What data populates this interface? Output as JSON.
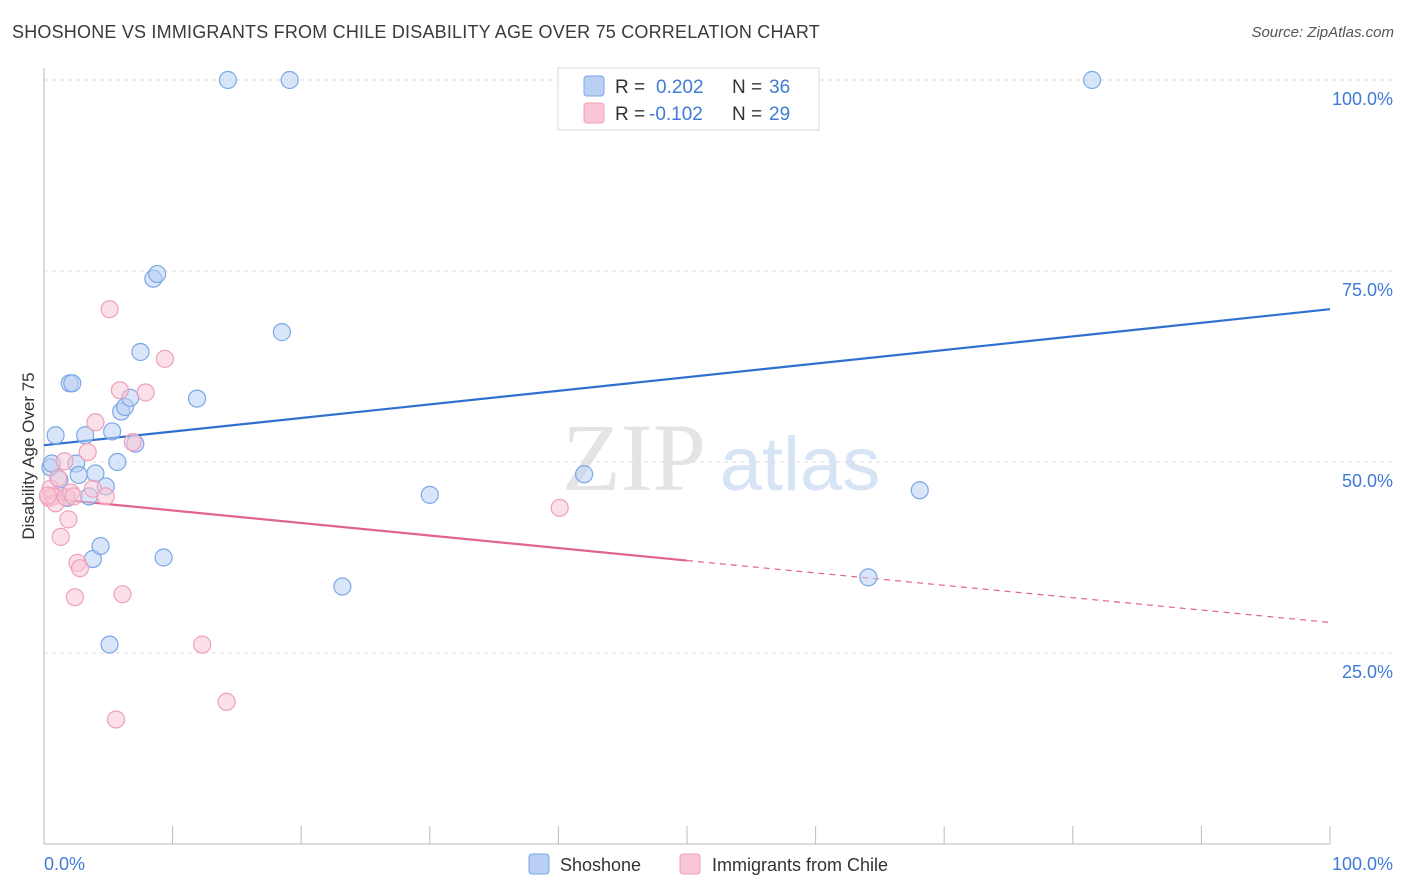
{
  "chart_data": {
    "type": "scatter",
    "title": "SHOSHONE VS IMMIGRANTS FROM CHILE DISABILITY AGE OVER 75 CORRELATION CHART",
    "source": "Source: ZipAtlas.com",
    "ylabel": "Disability Age Over 75",
    "xlabel": "",
    "xlim": [
      0,
      100
    ],
    "ylim": [
      0,
      100
    ],
    "x_tick_labels": {
      "left": "0.0%",
      "right": "100.0%"
    },
    "y_ticks": [
      {
        "value": 25,
        "label": "25.0%"
      },
      {
        "value": 50,
        "label": "50.0%"
      },
      {
        "value": 75,
        "label": "75.0%"
      },
      {
        "value": 100,
        "label": "100.0%"
      }
    ],
    "watermark": {
      "part1": "ZIP",
      "part2": "atlas"
    },
    "legend": {
      "rows": [
        {
          "r_label": "R =",
          "r_value": "0.202",
          "n_label": "N =",
          "n_value": "36"
        },
        {
          "r_label": "R =",
          "r_value": "-0.102",
          "n_label": "N =",
          "n_value": "29"
        }
      ]
    },
    "series": [
      {
        "name": "Shoshone",
        "color": "#7ba7e8",
        "fill": "#b9d0f3",
        "line_color": "#2f6fcf",
        "trend": {
          "x0": 0,
          "y0": 52.2,
          "x1": 100,
          "y1": 70.0
        },
        "points": [
          [
            0.5,
            49.3
          ],
          [
            0.6,
            49.8
          ],
          [
            0.9,
            53.5
          ],
          [
            1.2,
            47.7
          ],
          [
            1.8,
            45.3
          ],
          [
            2.0,
            60.3
          ],
          [
            2.2,
            60.3
          ],
          [
            2.5,
            49.8
          ],
          [
            2.7,
            48.3
          ],
          [
            3.2,
            53.5
          ],
          [
            3.5,
            45.5
          ],
          [
            3.8,
            37.3
          ],
          [
            4.0,
            48.5
          ],
          [
            4.4,
            39.0
          ],
          [
            4.8,
            46.8
          ],
          [
            5.1,
            26.1
          ],
          [
            5.3,
            54.0
          ],
          [
            5.7,
            50.0
          ],
          [
            6.0,
            56.6
          ],
          [
            6.3,
            57.2
          ],
          [
            6.7,
            58.4
          ],
          [
            7.1,
            52.4
          ],
          [
            7.5,
            64.4
          ],
          [
            8.5,
            74.0
          ],
          [
            8.8,
            74.6
          ],
          [
            9.3,
            37.5
          ],
          [
            11.9,
            58.3
          ],
          [
            14.3,
            100.0
          ],
          [
            19.1,
            100.0
          ],
          [
            18.5,
            67.0
          ],
          [
            23.2,
            33.7
          ],
          [
            30.0,
            45.7
          ],
          [
            42.0,
            48.4
          ],
          [
            64.1,
            34.9
          ],
          [
            68.1,
            46.3
          ],
          [
            81.5,
            100.0
          ]
        ]
      },
      {
        "name": "Immigrants from Chile",
        "color": "#f0a0ba",
        "fill": "#f8c6d6",
        "line_color": "#e0648e",
        "trend": {
          "x0": 0,
          "y0": 45.3,
          "x1": 50,
          "y1": 37.1
        },
        "trend_ext": {
          "x0": 50,
          "y0": 37.1,
          "x1": 100,
          "y1": 29.0
        },
        "points": [
          [
            0.4,
            45.3
          ],
          [
            0.5,
            46.5
          ],
          [
            0.7,
            45.5
          ],
          [
            0.9,
            44.6
          ],
          [
            1.1,
            47.9
          ],
          [
            1.3,
            40.2
          ],
          [
            1.6,
            50.1
          ],
          [
            1.7,
            45.4
          ],
          [
            1.9,
            42.5
          ],
          [
            2.1,
            46.0
          ],
          [
            2.3,
            45.5
          ],
          [
            2.4,
            32.3
          ],
          [
            2.6,
            36.8
          ],
          [
            2.8,
            36.1
          ],
          [
            3.4,
            51.3
          ],
          [
            3.8,
            46.5
          ],
          [
            4.0,
            55.2
          ],
          [
            4.8,
            45.5
          ],
          [
            5.1,
            70.0
          ],
          [
            5.6,
            16.3
          ],
          [
            5.9,
            59.4
          ],
          [
            6.1,
            32.7
          ],
          [
            6.9,
            52.6
          ],
          [
            7.9,
            59.1
          ],
          [
            9.4,
            63.5
          ],
          [
            12.3,
            26.1
          ],
          [
            14.2,
            18.6
          ],
          [
            40.1,
            44.0
          ],
          [
            0.3,
            45.6
          ]
        ]
      }
    ]
  }
}
